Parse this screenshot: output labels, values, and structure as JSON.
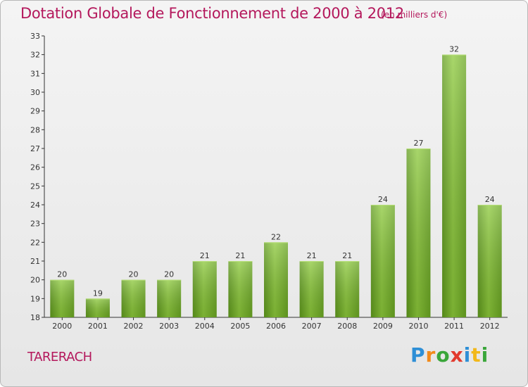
{
  "chart_data": {
    "type": "bar",
    "title": "Dotation Globale de Fonctionnement de 2000 à 2012",
    "subtitle": "(en milliers d'€)",
    "categories": [
      "2000",
      "2001",
      "2002",
      "2003",
      "2004",
      "2005",
      "2006",
      "2007",
      "2008",
      "2009",
      "2010",
      "2011",
      "2012"
    ],
    "values": [
      20,
      19,
      20,
      20,
      21,
      21,
      22,
      21,
      21,
      24,
      27,
      32,
      24
    ],
    "ylim": [
      18,
      33
    ],
    "yticks": [
      18,
      19,
      20,
      21,
      22,
      23,
      24,
      25,
      26,
      27,
      28,
      29,
      30,
      31,
      32,
      33
    ],
    "grid": false,
    "bar_color": "#7ab82e"
  },
  "commune": "TARERACH",
  "logo": {
    "letters": [
      "P",
      "r",
      "o",
      "x",
      "i",
      "t",
      "i"
    ]
  }
}
